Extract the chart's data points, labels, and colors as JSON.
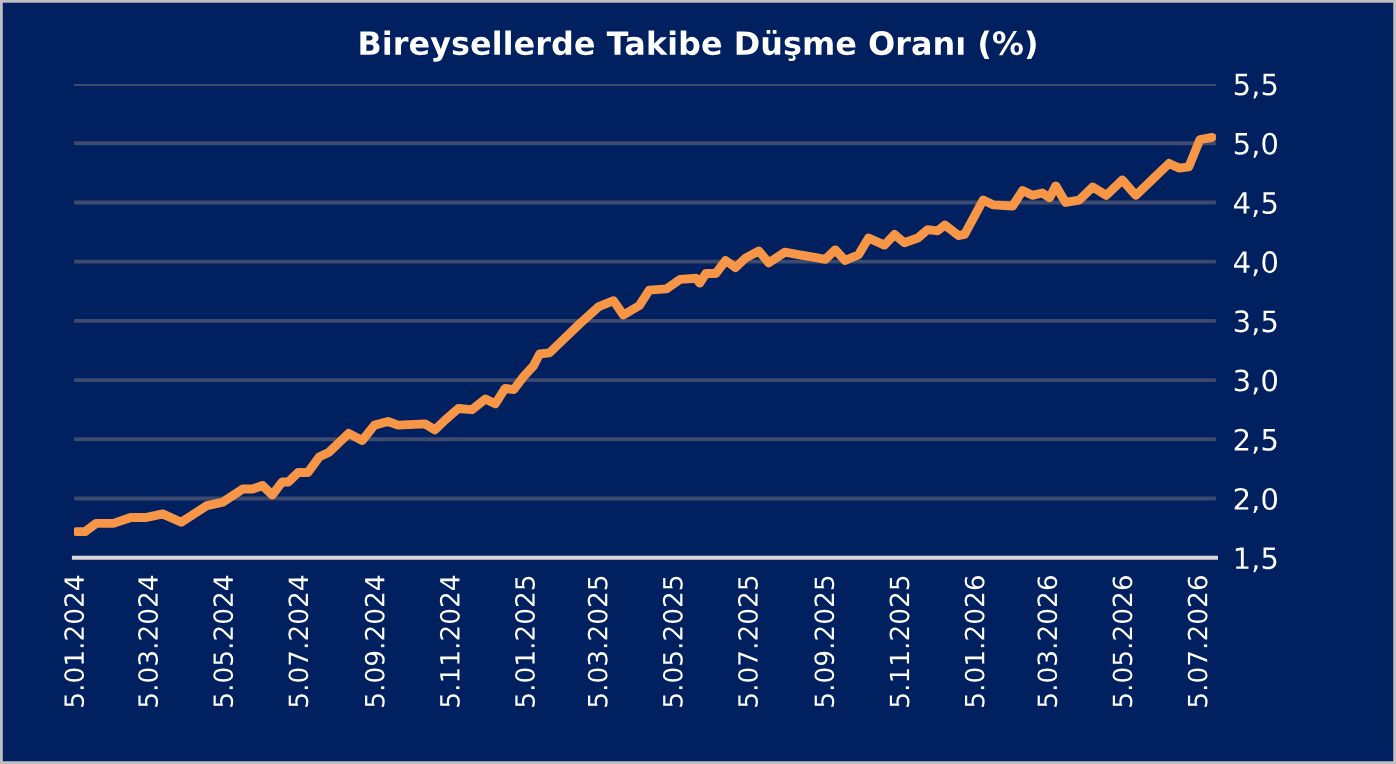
{
  "chart_data": {
    "type": "line",
    "title": "Bireysellerde Takibe Düşme Oranı (%)",
    "series": [
      {
        "color": "#f79646",
        "x": [
          "2024-01-05",
          "2024-01-12",
          "2024-01-21",
          "2024-02-04",
          "2024-02-18",
          "2024-03-02",
          "2024-03-15",
          "2024-03-30",
          "2024-04-20",
          "2024-05-03",
          "2024-05-19",
          "2024-05-27",
          "2024-06-04",
          "2024-06-12",
          "2024-06-20",
          "2024-06-25",
          "2024-07-03",
          "2024-07-11",
          "2024-07-20",
          "2024-07-28",
          "2024-08-13",
          "2024-08-24",
          "2024-09-03",
          "2024-09-14",
          "2024-09-22",
          "2024-10-14",
          "2024-10-22",
          "2024-10-30",
          "2024-11-10",
          "2024-11-21",
          "2024-12-02",
          "2024-12-10",
          "2024-12-18",
          "2024-12-25",
          "2025-01-02",
          "2025-01-10",
          "2025-01-15",
          "2025-01-23",
          "2025-01-31",
          "2025-02-17",
          "2025-03-04",
          "2025-03-16",
          "2025-03-24",
          "2025-04-06",
          "2025-04-14",
          "2025-04-28",
          "2025-05-09",
          "2025-05-22",
          "2025-05-25",
          "2025-05-30",
          "2025-06-07",
          "2025-06-15",
          "2025-06-23",
          "2025-07-01",
          "2025-07-12",
          "2025-07-20",
          "2025-08-02",
          "2025-08-13",
          "2025-08-24",
          "2025-09-04",
          "2025-09-12",
          "2025-09-20",
          "2025-10-01",
          "2025-10-09",
          "2025-10-22",
          "2025-10-30",
          "2025-11-07",
          "2025-11-18",
          "2025-11-26",
          "2025-12-04",
          "2025-12-10",
          "2025-12-21",
          "2025-12-26",
          "2026-01-10",
          "2026-01-18",
          "2026-02-03",
          "2026-02-11",
          "2026-02-19",
          "2026-02-27",
          "2026-03-05",
          "2026-03-10",
          "2026-03-18",
          "2026-03-29",
          "2026-04-09",
          "2026-04-20",
          "2026-05-03",
          "2026-05-14",
          "2026-05-28",
          "2026-06-10",
          "2026-06-18",
          "2026-06-26",
          "2026-07-05",
          "2026-07-15"
        ],
        "values": [
          1.72,
          1.72,
          1.79,
          1.79,
          1.84,
          1.84,
          1.87,
          1.8,
          1.94,
          1.97,
          2.08,
          2.08,
          2.11,
          2.03,
          2.14,
          2.14,
          2.22,
          2.22,
          2.35,
          2.39,
          2.55,
          2.49,
          2.62,
          2.65,
          2.62,
          2.63,
          2.58,
          2.66,
          2.76,
          2.75,
          2.84,
          2.8,
          2.93,
          2.92,
          3.03,
          3.12,
          3.22,
          3.23,
          3.31,
          3.48,
          3.62,
          3.67,
          3.55,
          3.63,
          3.76,
          3.77,
          3.85,
          3.86,
          3.82,
          3.9,
          3.9,
          4.01,
          3.95,
          4.03,
          4.09,
          3.99,
          4.08,
          4.06,
          4.04,
          4.02,
          4.1,
          4.01,
          4.06,
          4.2,
          4.14,
          4.23,
          4.16,
          4.2,
          4.27,
          4.26,
          4.31,
          4.22,
          4.23,
          4.52,
          4.48,
          4.47,
          4.6,
          4.56,
          4.58,
          4.54,
          4.64,
          4.5,
          4.52,
          4.63,
          4.56,
          4.69,
          4.56,
          4.7,
          4.83,
          4.79,
          4.8,
          5.03,
          5.05
        ]
      }
    ],
    "xlim": [
      "2024-01-03",
      "2026-07-18"
    ],
    "xticks": [
      {
        "value": "2024-01-05",
        "label": "5.01.2024"
      },
      {
        "value": "2024-03-05",
        "label": "5.03.2024"
      },
      {
        "value": "2024-05-05",
        "label": "5.05.2024"
      },
      {
        "value": "2024-07-05",
        "label": "5.07.2024"
      },
      {
        "value": "2024-09-05",
        "label": "5.09.2024"
      },
      {
        "value": "2024-11-05",
        "label": "5.11.2024"
      },
      {
        "value": "2025-01-05",
        "label": "5.01.2025"
      },
      {
        "value": "2025-03-05",
        "label": "5.03.2025"
      },
      {
        "value": "2025-05-05",
        "label": "5.05.2025"
      },
      {
        "value": "2025-07-05",
        "label": "5.07.2025"
      },
      {
        "value": "2025-09-05",
        "label": "5.09.2025"
      },
      {
        "value": "2025-11-05",
        "label": "5.11.2025"
      },
      {
        "value": "2026-01-05",
        "label": "5.01.2026"
      },
      {
        "value": "2026-03-05",
        "label": "5.03.2026"
      },
      {
        "value": "2026-05-05",
        "label": "5.05.2026"
      },
      {
        "value": "2026-07-05",
        "label": "5.07.2026"
      }
    ],
    "ylim": [
      1.5,
      5.5
    ],
    "yticks": [
      {
        "value": 1.5,
        "label": "1,5"
      },
      {
        "value": 2.0,
        "label": "2,0"
      },
      {
        "value": 2.5,
        "label": "2,5"
      },
      {
        "value": 3.0,
        "label": "3,0"
      },
      {
        "value": 3.5,
        "label": "3,5"
      },
      {
        "value": 4.0,
        "label": "4,0"
      },
      {
        "value": 4.5,
        "label": "4,5"
      },
      {
        "value": 5.0,
        "label": "5,0"
      },
      {
        "value": 5.5,
        "label": "5,5"
      }
    ],
    "grid": "y",
    "legend": false,
    "marker": "none",
    "line_style": "solid"
  }
}
